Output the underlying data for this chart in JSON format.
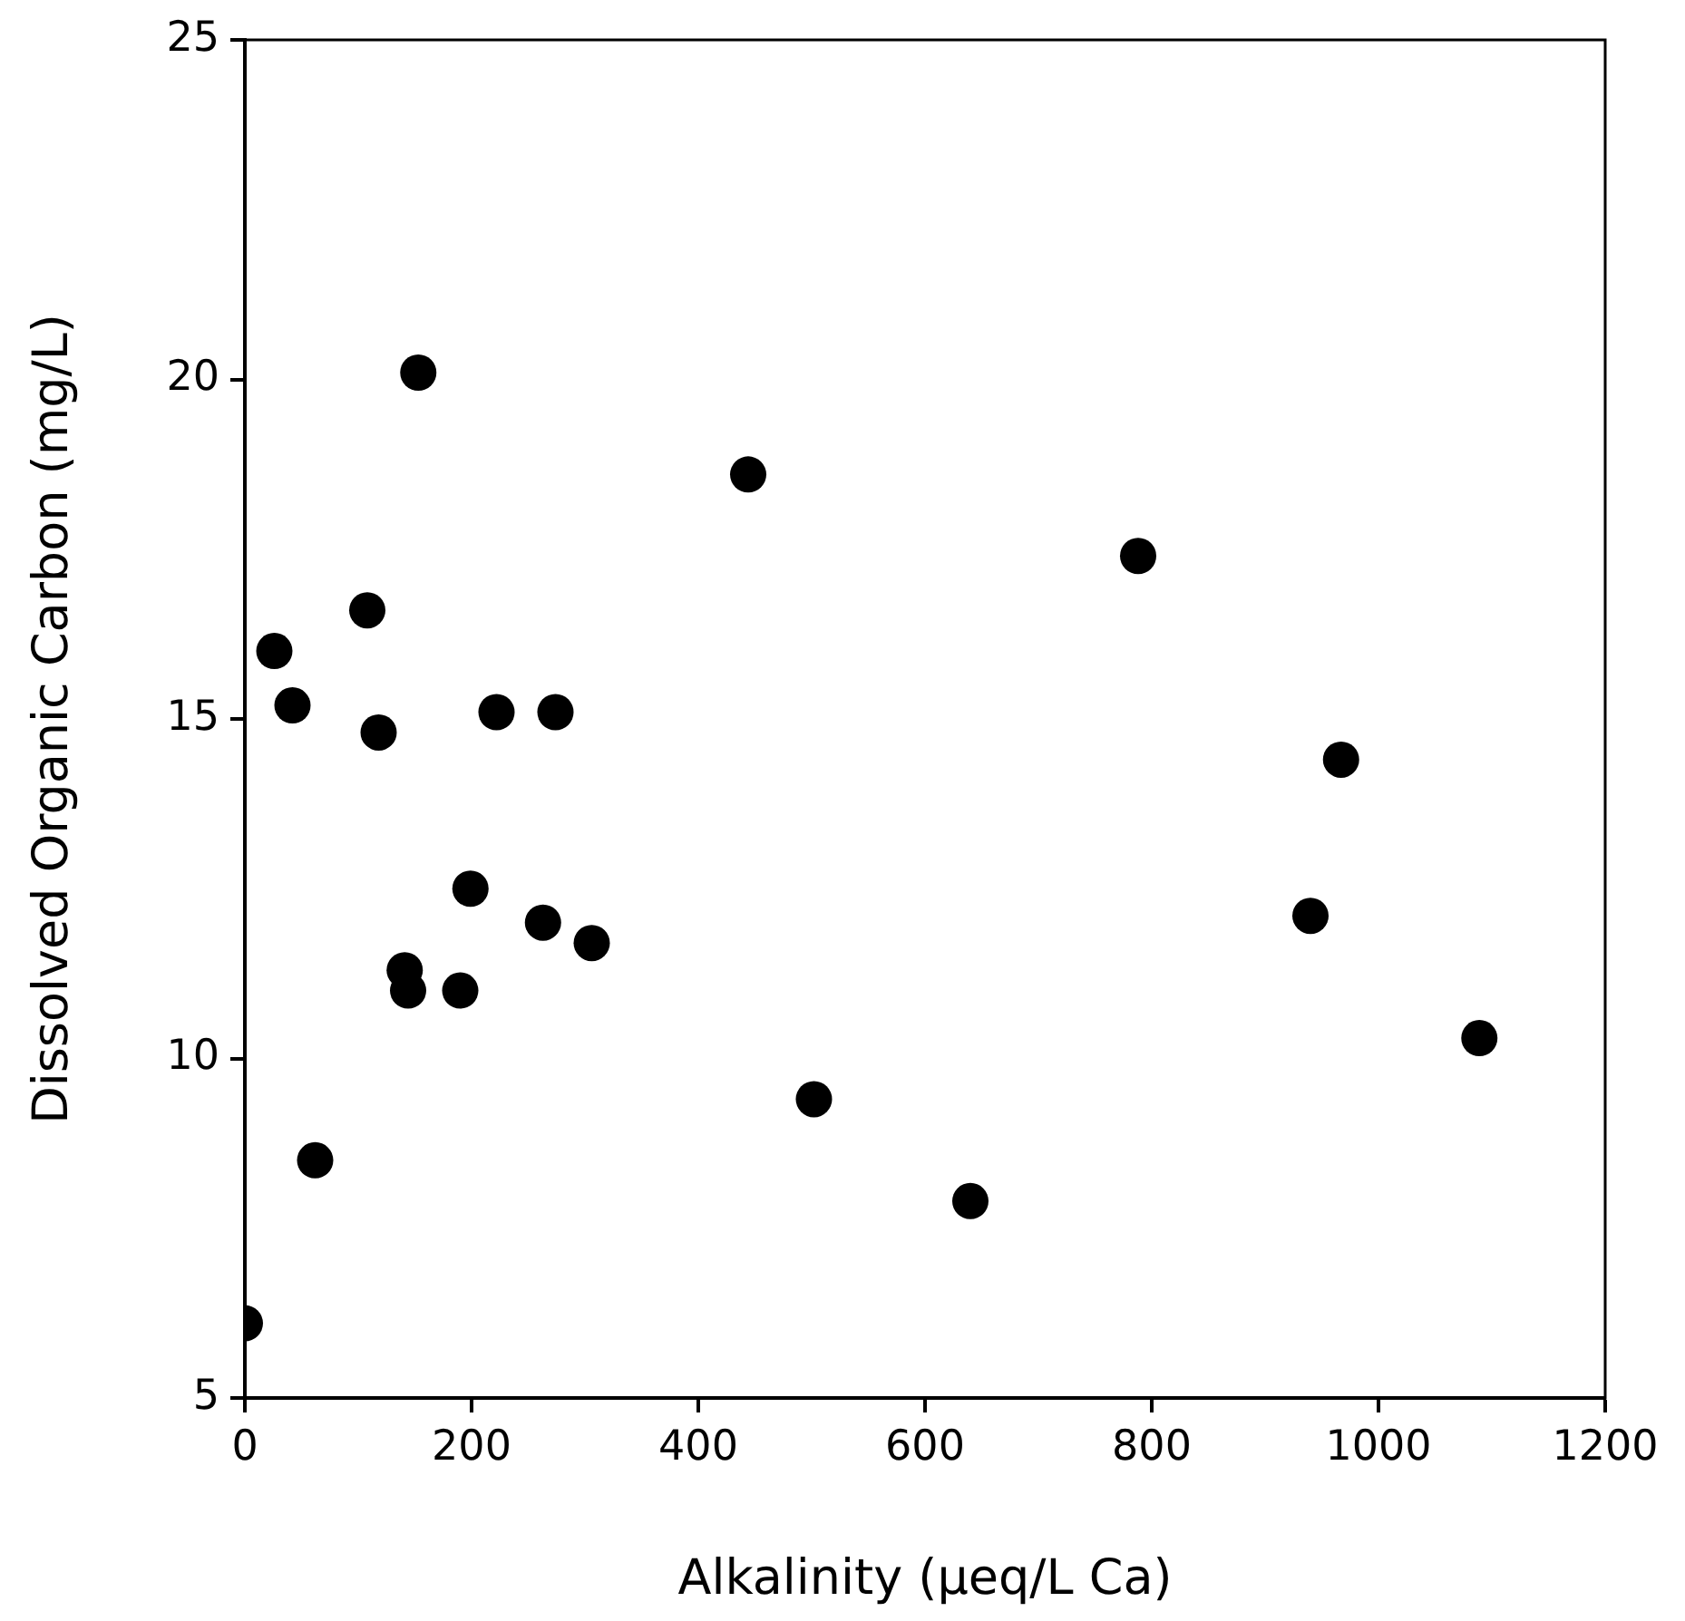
{
  "chart_data": {
    "type": "scatter",
    "xlabel": "Alkalinity (μeq/L Ca)",
    "ylabel": "Dissolved Organic Carbon (mg/L)",
    "x": [
      153,
      444,
      108,
      26,
      42,
      118,
      222,
      274,
      199,
      263,
      306,
      141,
      144,
      190,
      502,
      62,
      0,
      788,
      967,
      940,
      1089,
      640
    ],
    "series": [
      {
        "color": "#000000",
        "values": [
          20.1,
          18.6,
          16.6,
          16.0,
          15.2,
          14.8,
          15.1,
          15.1,
          12.5,
          12.0,
          11.7,
          11.3,
          11.0,
          11.0,
          9.4,
          8.5,
          6.1,
          17.4,
          14.4,
          12.1,
          10.3,
          7.9
        ]
      }
    ],
    "xlim": [
      0,
      1200
    ],
    "xticks": [
      0,
      200,
      400,
      600,
      800,
      1000,
      1200
    ],
    "ylim": [
      5,
      25
    ],
    "yticks": [
      5,
      10,
      15,
      20,
      25
    ],
    "marker": "circle",
    "legend": false
  }
}
